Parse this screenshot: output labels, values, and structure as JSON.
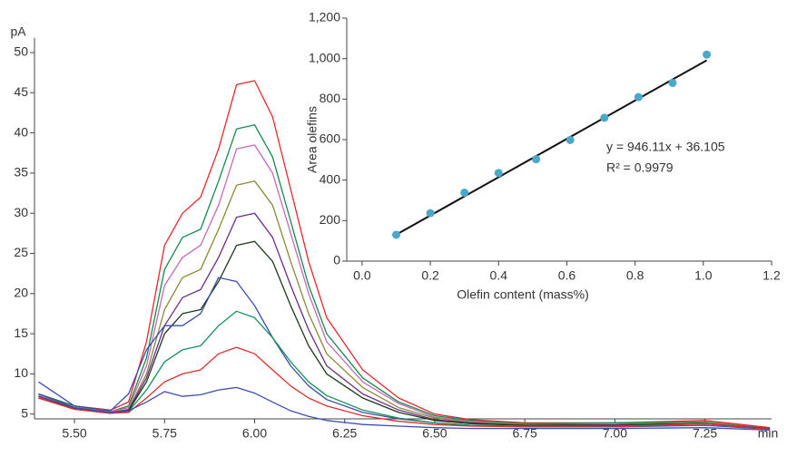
{
  "chart_data": [
    {
      "type": "line",
      "ylabel": "pA",
      "xlabel": "min",
      "x": [
        5.4,
        5.5,
        5.6,
        5.65,
        5.7,
        5.75,
        5.8,
        5.85,
        5.9,
        5.95,
        6.0,
        6.05,
        6.1,
        6.15,
        6.2,
        6.3,
        6.4,
        6.5,
        6.6,
        6.75,
        7.0,
        7.25,
        7.43
      ],
      "series": [
        {
          "color": "#e8262b",
          "values": [
            7.5,
            6,
            5.5,
            6.5,
            14,
            26,
            30,
            32,
            38,
            46,
            46.5,
            42,
            33,
            24,
            17,
            10.5,
            7,
            5,
            4.3,
            3.9,
            3.9,
            4.2,
            3.3
          ]
        },
        {
          "color": "#138a4b",
          "values": [
            7.5,
            6,
            5.3,
            6,
            12,
            23,
            27,
            28,
            34,
            40.5,
            41,
            37,
            29,
            21,
            15,
            9.5,
            6.5,
            4.8,
            4.2,
            3.8,
            3.9,
            4,
            3.2
          ]
        },
        {
          "color": "#c569b8",
          "values": [
            7.3,
            5.8,
            5.3,
            5.8,
            11,
            21,
            24.5,
            26,
            31,
            38,
            38.5,
            35,
            27.5,
            20,
            14,
            9,
            6.3,
            4.6,
            4.1,
            3.7,
            3.7,
            3.9,
            3.2
          ]
        },
        {
          "color": "#8a8a35",
          "values": [
            7.2,
            5.8,
            5.2,
            5.6,
            10,
            18,
            22,
            23,
            28,
            33.5,
            34,
            31,
            24,
            17.5,
            12.5,
            8.3,
            5.8,
            4.5,
            4,
            3.7,
            3.7,
            3.9,
            3.2
          ]
        },
        {
          "color": "#6b2c8a",
          "values": [
            7.2,
            5.7,
            5.2,
            5.5,
            9.5,
            16,
            19.5,
            20.5,
            24.5,
            29.5,
            30,
            27,
            21,
            15.5,
            11,
            7.5,
            5.5,
            4.3,
            3.9,
            3.6,
            3.7,
            3.8,
            3.2
          ]
        },
        {
          "color": "#1a3a1a",
          "values": [
            7,
            5.6,
            5.1,
            5.4,
            9,
            15,
            17.5,
            18,
            21.5,
            26,
            26.5,
            24,
            18.5,
            13.5,
            10,
            7,
            5.2,
            4.2,
            3.8,
            3.6,
            3.6,
            3.8,
            3.1
          ]
        },
        {
          "color": "#3a4faa",
          "values": [
            9,
            6,
            5.4,
            7.5,
            13,
            16,
            16,
            17.5,
            22,
            21.5,
            18.5,
            14.5,
            11,
            8.5,
            6.8,
            5.2,
            4.4,
            3.9,
            3.6,
            3.4,
            3.4,
            3.6,
            3.1
          ]
        },
        {
          "color": "#13925a",
          "values": [
            7,
            5.6,
            5.1,
            5.3,
            8,
            11.5,
            13,
            13.5,
            16,
            17.8,
            17,
            14.5,
            11.5,
            9,
            7.3,
            5.5,
            4.5,
            3.9,
            3.6,
            3.5,
            3.5,
            3.8,
            3.1
          ]
        },
        {
          "color": "#e02a2a",
          "values": [
            7,
            5.6,
            5.1,
            5.2,
            7,
            9,
            10,
            10.5,
            12.5,
            13.3,
            12.5,
            10.5,
            8.5,
            7,
            6,
            4.8,
            4.1,
            3.7,
            3.5,
            3.4,
            3.4,
            3.8,
            3.1
          ]
        },
        {
          "color": "#3950b0",
          "values": [
            7.5,
            5.8,
            5.2,
            5.4,
            6.5,
            7.8,
            7.2,
            7.4,
            8,
            8.3,
            7.6,
            6.5,
            5.4,
            4.7,
            4.2,
            3.7,
            3.5,
            3.3,
            3.2,
            3.2,
            3.2,
            3.3,
            3.0
          ]
        }
      ],
      "xlim": [
        5.389,
        7.435
      ],
      "ylim": [
        4.4,
        51.5
      ],
      "xticks": [
        {
          "value": 5.5,
          "label": "5.50"
        },
        5.75,
        {
          "value": 6,
          "label": "6.00"
        },
        6.25,
        {
          "value": 6.5,
          "label": "6.50"
        },
        6.75,
        {
          "value": 7,
          "label": "7.00"
        },
        7.25
      ],
      "yticks": [
        5,
        10,
        15,
        20,
        25,
        30,
        35,
        40,
        45,
        50
      ],
      "grid": false
    },
    {
      "type": "scatter",
      "xlabel": "Olefin content (mass%)",
      "ylabel": "Area olefins",
      "x": [
        0.1,
        0.2,
        0.3,
        0.4,
        0.51,
        0.61,
        0.71,
        0.81,
        0.91,
        1.01
      ],
      "values": [
        130,
        237,
        338,
        435,
        503,
        598,
        708,
        810,
        880,
        1020
      ],
      "color": "#4aa8c8",
      "trendline": {
        "x": [
          0.1,
          1.01
        ],
        "values": [
          130.72,
          991.67
        ],
        "color": "#111111"
      },
      "annotations": [
        "y = 946.11x + 36.105",
        "R² = 0.9979"
      ],
      "xlim": [
        -0.045,
        1.2
      ],
      "ylim": [
        0,
        1200
      ],
      "xticks": [
        {
          "value": 0,
          "label": "0.0"
        },
        0.2,
        0.4,
        0.6,
        0.8,
        {
          "value": 1,
          "label": "1.0"
        },
        1.2
      ],
      "yticks": [
        0,
        200,
        400,
        600,
        800,
        {
          "value": 1000,
          "label": "1,000"
        },
        {
          "value": 1200,
          "label": "1,200"
        }
      ],
      "grid": false
    }
  ]
}
